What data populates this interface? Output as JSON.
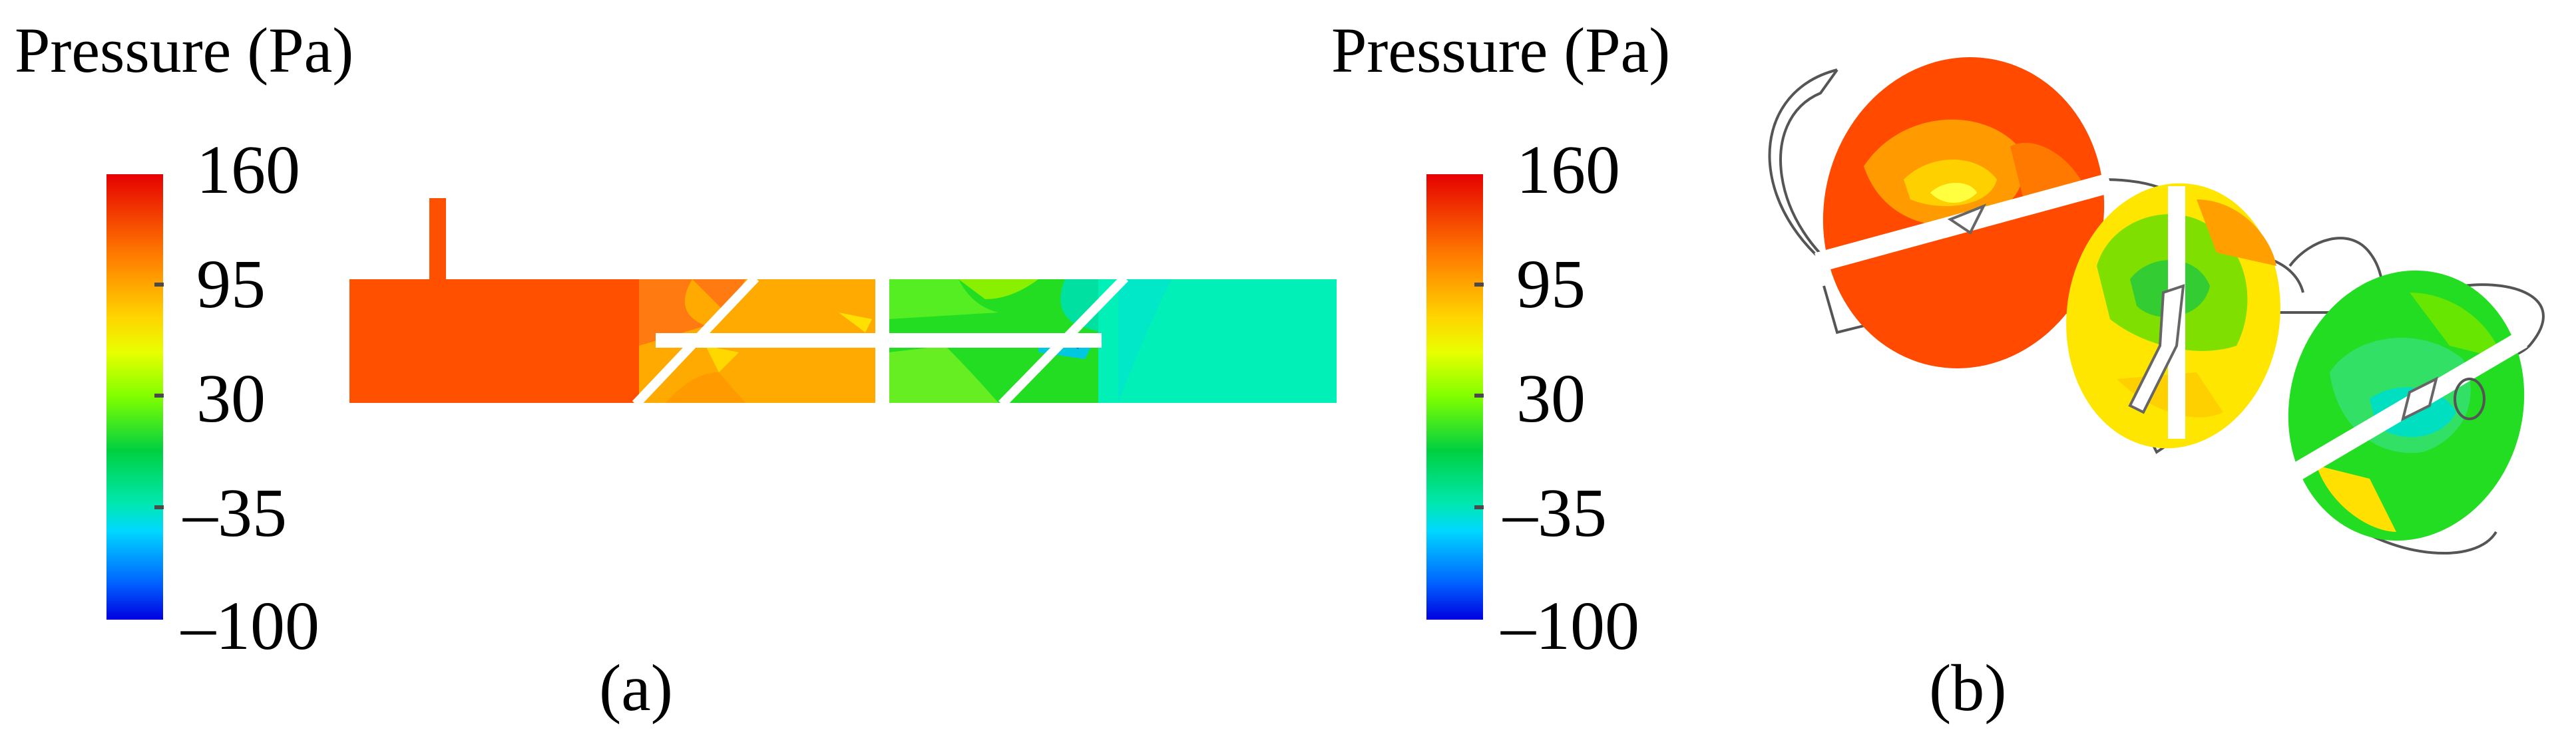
{
  "panel_a": {
    "colorbar_title": "Pressure (Pa)",
    "ticks": [
      "160",
      "95",
      "30",
      "–35",
      "–100"
    ],
    "caption": "(a)"
  },
  "panel_b": {
    "colorbar_title": "Pressure (Pa)",
    "ticks": [
      "160",
      "95",
      "30",
      "–35",
      "–100"
    ],
    "caption": "(b)"
  },
  "colormap": [
    "#e60000",
    "#ff7a00",
    "#ffd400",
    "#e8ff00",
    "#7fff00",
    "#00d040",
    "#00e8b0",
    "#00d8ff",
    "#0060ff",
    "#0000e0"
  ]
}
